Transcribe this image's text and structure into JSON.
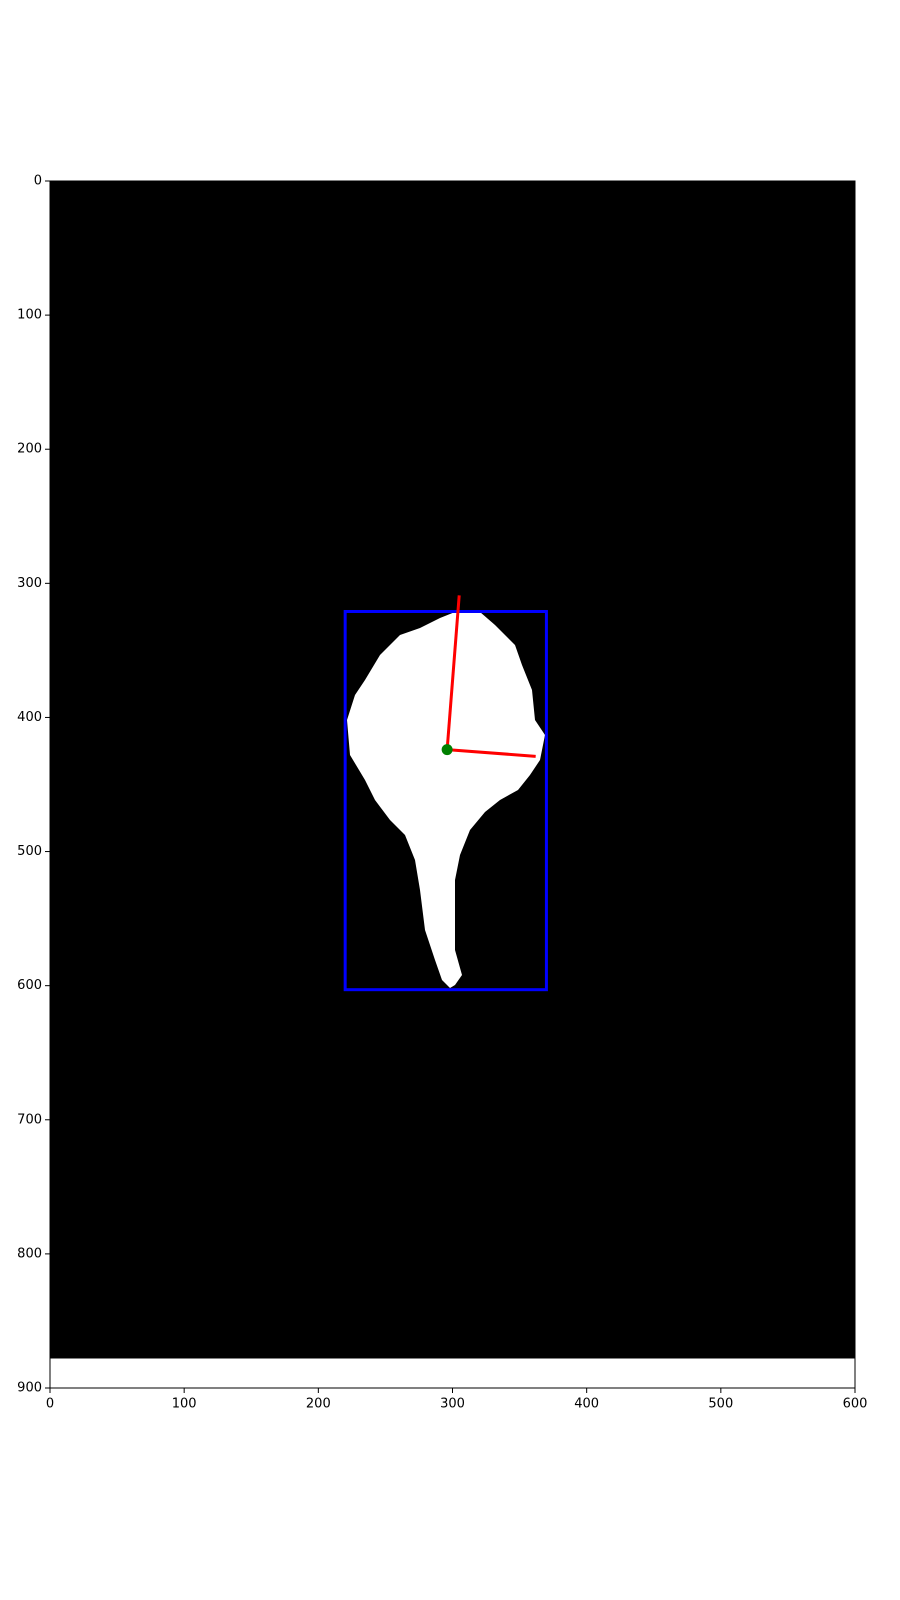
{
  "chart_data": {
    "type": "image",
    "xlim": [
      0,
      600
    ],
    "ylim": [
      900,
      0
    ],
    "xticks": [
      0,
      100,
      200,
      300,
      400,
      500,
      600
    ],
    "yticks": [
      0,
      100,
      200,
      300,
      400,
      500,
      600,
      700,
      800,
      900
    ],
    "image_extent": {
      "x": [
        0,
        600
      ],
      "y": [
        0,
        878
      ],
      "color": "#000000"
    },
    "bbox": {
      "x": [
        220,
        370
      ],
      "y": [
        321,
        603
      ],
      "color": "#0000ff"
    },
    "centroid": {
      "x": 296,
      "y": 424,
      "color": "#008000"
    },
    "axes_lines": {
      "color": "#ff0000",
      "x": [
        [
          296,
          305
        ],
        [
          296,
          362
        ]
      ],
      "y": [
        [
          424,
          309
        ],
        [
          424,
          429
        ]
      ]
    }
  }
}
